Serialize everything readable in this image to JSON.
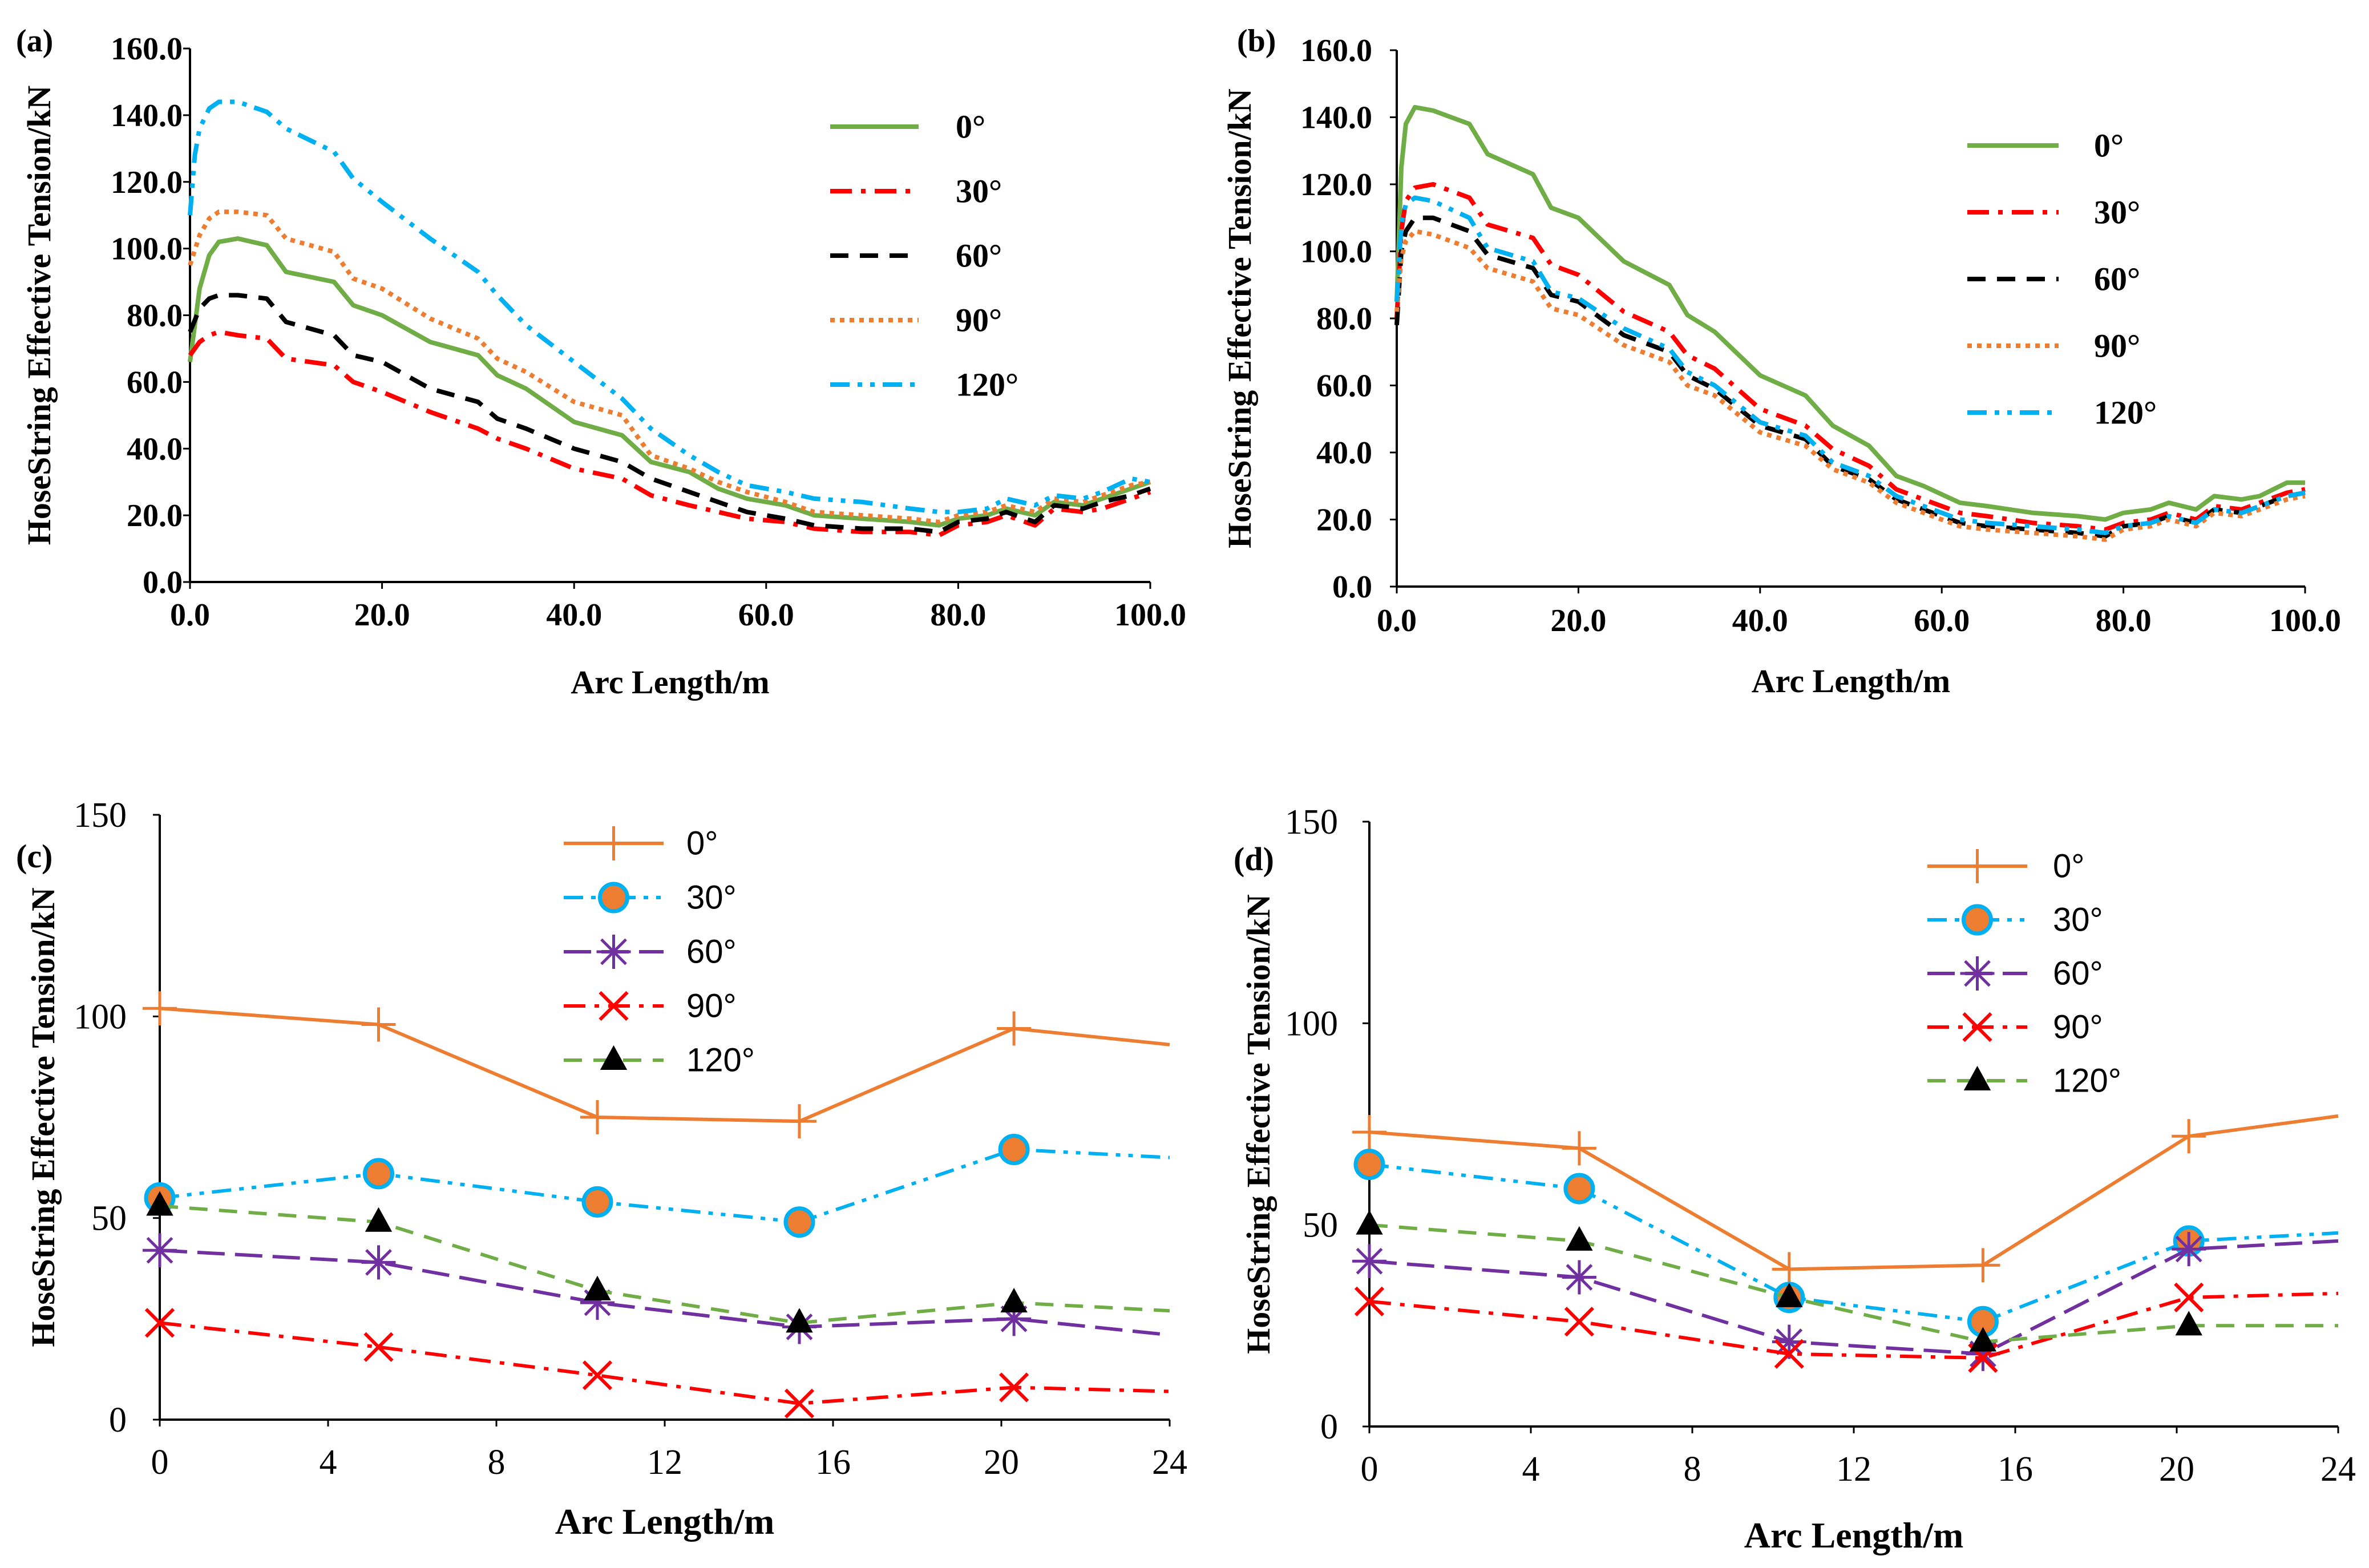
{
  "chart_data": [
    {
      "panel": "(a)",
      "type": "line",
      "xlabel": "Arc Length/m",
      "ylabel": "HoseString Effective Tension/kN",
      "xlim": [
        0,
        100
      ],
      "ylim": [
        0,
        160
      ],
      "xticks": [
        "0.0",
        "20.0",
        "40.0",
        "60.0",
        "80.0",
        "100.0"
      ],
      "yticks": [
        "0.0",
        "20.0",
        "40.0",
        "60.0",
        "80.0",
        "100.0",
        "120.0",
        "140.0",
        "160.0"
      ],
      "legend_position": "top-right",
      "series": [
        {
          "name": "0°",
          "color": "#70AD47",
          "dash": "solid",
          "x": [
            0,
            1,
            2,
            3,
            5,
            8,
            10,
            15,
            17,
            20,
            25,
            30,
            32,
            35,
            40,
            45,
            48,
            52,
            55,
            58,
            62,
            65,
            70,
            75,
            78,
            80,
            83,
            85,
            88,
            90,
            93,
            95,
            98,
            100
          ],
          "y": [
            66,
            88,
            98,
            102,
            103,
            101,
            93,
            90,
            83,
            80,
            72,
            68,
            62,
            58,
            48,
            44,
            36,
            33,
            28,
            25,
            23,
            20,
            19,
            18,
            17,
            19,
            20,
            22,
            20,
            24,
            23,
            25,
            28,
            30
          ]
        },
        {
          "name": "30°",
          "color": "#FF0000",
          "dash": "dashdot",
          "x": [
            0,
            1,
            2,
            3,
            5,
            8,
            10,
            15,
            17,
            20,
            25,
            30,
            32,
            35,
            40,
            45,
            48,
            52,
            55,
            58,
            62,
            65,
            70,
            75,
            78,
            80,
            83,
            85,
            88,
            90,
            93,
            95,
            98,
            100
          ],
          "y": [
            68,
            72,
            74,
            75,
            74,
            73,
            67,
            65,
            60,
            57,
            51,
            46,
            43,
            40,
            34,
            31,
            26,
            23,
            21,
            19,
            18,
            16,
            15,
            15,
            14,
            17,
            18,
            20,
            17,
            22,
            21,
            22,
            25,
            27
          ]
        },
        {
          "name": "60°",
          "color": "#000000",
          "dash": "dash",
          "x": [
            0,
            1,
            2,
            3,
            5,
            8,
            10,
            15,
            17,
            20,
            25,
            30,
            32,
            35,
            40,
            45,
            48,
            52,
            55,
            58,
            62,
            65,
            70,
            75,
            78,
            80,
            83,
            85,
            88,
            90,
            93,
            95,
            98,
            100
          ],
          "y": [
            75,
            82,
            85,
            86,
            86,
            85,
            78,
            74,
            68,
            66,
            58,
            54,
            49,
            46,
            40,
            36,
            31,
            27,
            24,
            21,
            19,
            17,
            16,
            16,
            15,
            18,
            19,
            21,
            18,
            23,
            22,
            24,
            26,
            28
          ]
        },
        {
          "name": "90°",
          "color": "#ED7D31",
          "dash": "dot",
          "x": [
            0,
            1,
            2,
            3,
            5,
            8,
            10,
            15,
            17,
            20,
            25,
            30,
            32,
            35,
            40,
            45,
            48,
            52,
            55,
            58,
            62,
            65,
            70,
            75,
            78,
            80,
            83,
            85,
            88,
            90,
            93,
            95,
            98,
            100
          ],
          "y": [
            95,
            104,
            109,
            111,
            111,
            110,
            103,
            99,
            91,
            88,
            79,
            73,
            67,
            63,
            54,
            50,
            38,
            34,
            30,
            27,
            24,
            21,
            20,
            19,
            18,
            20,
            21,
            23,
            21,
            25,
            24,
            26,
            29,
            30
          ]
        },
        {
          "name": "120°",
          "color": "#00B0F0",
          "dash": "dashdotdot",
          "x": [
            0,
            0.5,
            1,
            2,
            3,
            5,
            8,
            10,
            15,
            17,
            20,
            25,
            30,
            32,
            35,
            40,
            45,
            48,
            52,
            55,
            58,
            62,
            65,
            70,
            75,
            78,
            80,
            83,
            85,
            88,
            90,
            93,
            95,
            98,
            100
          ],
          "y": [
            110,
            128,
            136,
            142,
            144,
            144,
            141,
            136,
            129,
            121,
            114,
            103,
            93,
            86,
            77,
            66,
            55,
            46,
            38,
            33,
            29,
            27,
            25,
            24,
            22,
            21,
            21,
            22,
            25,
            23,
            26,
            25,
            27,
            31,
            30
          ]
        }
      ]
    },
    {
      "panel": "(b)",
      "type": "line",
      "xlabel": "Arc Length/m",
      "ylabel": "HoseString Effective Tension/kN",
      "xlim": [
        0,
        100
      ],
      "ylim": [
        0,
        160
      ],
      "xticks": [
        "0.0",
        "20.0",
        "40.0",
        "60.0",
        "80.0",
        "100.0"
      ],
      "yticks": [
        "0.0",
        "20.0",
        "40.0",
        "60.0",
        "80.0",
        "100.0",
        "120.0",
        "140.0",
        "160.0"
      ],
      "legend_position": "top-right",
      "series": [
        {
          "name": "0°",
          "color": "#70AD47",
          "dash": "solid",
          "x": [
            0,
            0.5,
            1,
            2,
            4,
            8,
            10,
            15,
            17,
            20,
            25,
            30,
            32,
            35,
            40,
            45,
            48,
            52,
            55,
            58,
            62,
            65,
            70,
            75,
            78,
            80,
            83,
            85,
            88,
            90,
            93,
            95,
            98,
            100
          ],
          "y": [
            85,
            125,
            138,
            143,
            142,
            138,
            129,
            123,
            113,
            110,
            97,
            90,
            81,
            76,
            63,
            57,
            48,
            42,
            33,
            30,
            25,
            24,
            22,
            21,
            20,
            22,
            23,
            25,
            23,
            27,
            26,
            27,
            31,
            31
          ]
        },
        {
          "name": "30°",
          "color": "#FF0000",
          "dash": "dashdot",
          "x": [
            0,
            0.5,
            1,
            2,
            4,
            8,
            10,
            15,
            17,
            20,
            25,
            30,
            32,
            35,
            40,
            45,
            48,
            52,
            55,
            58,
            62,
            65,
            70,
            75,
            78,
            80,
            83,
            85,
            88,
            90,
            93,
            95,
            98,
            100
          ],
          "y": [
            80,
            106,
            115,
            119,
            120,
            116,
            108,
            104,
            96,
            93,
            82,
            76,
            69,
            65,
            53,
            48,
            41,
            36,
            29,
            26,
            22,
            21,
            19,
            18,
            17,
            19,
            20,
            22,
            20,
            24,
            23,
            25,
            28,
            29
          ]
        },
        {
          "name": "60°",
          "color": "#000000",
          "dash": "dash",
          "x": [
            0,
            0.5,
            1,
            2,
            4,
            8,
            10,
            15,
            17,
            20,
            25,
            30,
            32,
            35,
            40,
            45,
            48,
            52,
            55,
            58,
            62,
            65,
            70,
            75,
            78,
            80,
            83,
            85,
            88,
            90,
            93,
            95,
            98,
            100
          ],
          "y": [
            78,
            100,
            106,
            110,
            110,
            106,
            99,
            95,
            87,
            85,
            75,
            70,
            63,
            59,
            48,
            44,
            36,
            32,
            26,
            23,
            19,
            18,
            17,
            16,
            15,
            18,
            19,
            21,
            19,
            23,
            22,
            24,
            27,
            28
          ]
        },
        {
          "name": "90°",
          "color": "#ED7D31",
          "dash": "dot",
          "x": [
            0,
            0.5,
            1,
            2,
            4,
            8,
            10,
            15,
            17,
            20,
            25,
            30,
            32,
            35,
            40,
            45,
            48,
            52,
            55,
            58,
            62,
            65,
            70,
            75,
            78,
            80,
            83,
            85,
            88,
            90,
            93,
            95,
            98,
            100
          ],
          "y": [
            82,
            98,
            103,
            106,
            105,
            101,
            95,
            91,
            83,
            81,
            72,
            67,
            60,
            57,
            46,
            42,
            35,
            31,
            25,
            22,
            18,
            17,
            16,
            15,
            14,
            17,
            18,
            20,
            18,
            22,
            21,
            23,
            26,
            27
          ]
        },
        {
          "name": "120°",
          "color": "#00B0F0",
          "dash": "dashdotdot",
          "x": [
            0,
            0.5,
            1,
            2,
            4,
            8,
            10,
            15,
            17,
            20,
            25,
            30,
            32,
            35,
            40,
            45,
            48,
            52,
            55,
            58,
            62,
            65,
            70,
            75,
            78,
            80,
            83,
            85,
            88,
            90,
            93,
            95,
            98,
            100
          ],
          "y": [
            85,
            108,
            114,
            116,
            115,
            110,
            101,
            97,
            88,
            86,
            77,
            71,
            64,
            60,
            49,
            45,
            37,
            33,
            27,
            24,
            20,
            19,
            18,
            17,
            16,
            18,
            19,
            21,
            19,
            23,
            22,
            24,
            27,
            28
          ]
        }
      ]
    },
    {
      "panel": "(c)",
      "type": "line",
      "xlabel": "Arc Length/m",
      "ylabel": "HoseString Effective Tension/kN",
      "xlim": [
        0,
        24
      ],
      "ylim": [
        0,
        150
      ],
      "xticks": [
        "0",
        "4",
        "8",
        "12",
        "16",
        "20",
        "24"
      ],
      "yticks": [
        "0",
        "50",
        "100",
        "150"
      ],
      "legend_position": "top-center",
      "series": [
        {
          "name": "0°",
          "color": "#ED7D31",
          "dash": "solid",
          "marker": "plus",
          "x": [
            0,
            5.2,
            10.4,
            15.2,
            20.3,
            24
          ],
          "y": [
            102,
            98,
            75,
            74,
            97,
            93
          ]
        },
        {
          "name": "30°",
          "color": "#00B0F0",
          "dash": "dashdotdot",
          "marker": "circle",
          "x": [
            0,
            5.2,
            10.4,
            15.2,
            20.3,
            24
          ],
          "y": [
            55,
            61,
            54,
            49,
            67,
            65
          ]
        },
        {
          "name": "60°",
          "color": "#7030A0",
          "dash": "longdash",
          "marker": "asterisk",
          "x": [
            0,
            5.2,
            10.4,
            15.2,
            20.3,
            24
          ],
          "y": [
            42,
            39,
            29,
            23,
            25,
            21
          ]
        },
        {
          "name": "90°",
          "color": "#FF0000",
          "dash": "dashdot",
          "marker": "x",
          "x": [
            0,
            5.2,
            10.4,
            15.2,
            20.3,
            24
          ],
          "y": [
            24,
            18,
            11,
            4,
            8,
            7
          ]
        },
        {
          "name": "120°",
          "color": "#70AD47",
          "dash": "dash",
          "marker": "triangle",
          "x": [
            0,
            5.2,
            10.4,
            15.2,
            20.3,
            24
          ],
          "y": [
            53,
            49,
            32,
            24,
            29,
            27
          ]
        }
      ]
    },
    {
      "panel": "(d)",
      "type": "line",
      "xlabel": "Arc Length/m",
      "ylabel": "HoseString Effective Tension/kN",
      "xlim": [
        0,
        24
      ],
      "ylim": [
        0,
        150
      ],
      "xticks": [
        "0",
        "4",
        "8",
        "12",
        "16",
        "20",
        "24"
      ],
      "yticks": [
        "0",
        "50",
        "100",
        "150"
      ],
      "legend_position": "top-center",
      "series": [
        {
          "name": "0°",
          "color": "#ED7D31",
          "dash": "solid",
          "marker": "plus",
          "x": [
            0,
            5.2,
            10.4,
            15.2,
            20.3,
            24
          ],
          "y": [
            73,
            69,
            39,
            40,
            72,
            77
          ]
        },
        {
          "name": "30°",
          "color": "#00B0F0",
          "dash": "dashdotdot",
          "marker": "circle",
          "x": [
            0,
            5.2,
            10.4,
            15.2,
            20.3,
            24
          ],
          "y": [
            65,
            59,
            32,
            26,
            46,
            48
          ]
        },
        {
          "name": "60°",
          "color": "#7030A0",
          "dash": "longdash",
          "marker": "asterisk",
          "x": [
            0,
            5.2,
            10.4,
            15.2,
            20.3,
            24
          ],
          "y": [
            41,
            37,
            21,
            18,
            44,
            46
          ]
        },
        {
          "name": "90°",
          "color": "#FF0000",
          "dash": "dashdot",
          "marker": "x",
          "x": [
            0,
            5.2,
            10.4,
            15.2,
            20.3,
            24
          ],
          "y": [
            31,
            26,
            18,
            17,
            32,
            33
          ]
        },
        {
          "name": "120°",
          "color": "#70AD47",
          "dash": "dash",
          "marker": "triangle",
          "x": [
            0,
            5.2,
            10.4,
            15.2,
            20.3,
            24
          ],
          "y": [
            50,
            46,
            32,
            21,
            25,
            25
          ]
        }
      ]
    }
  ]
}
